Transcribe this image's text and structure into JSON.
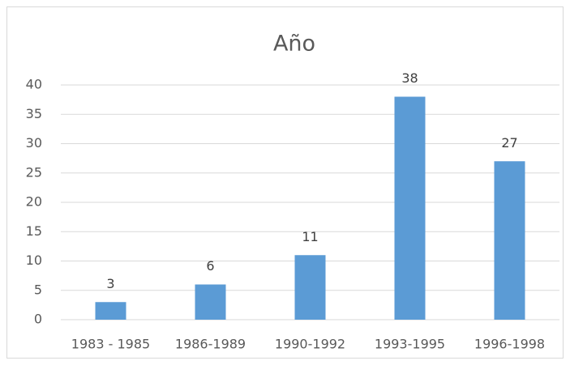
{
  "chart_data": {
    "type": "bar",
    "title": "Año",
    "categories": [
      "1983 - 1985",
      "1986-1989",
      "1990-1992",
      "1993-1995",
      "1996-1998"
    ],
    "values": [
      3,
      6,
      11,
      38,
      27
    ],
    "color": "#5b9bd5",
    "ylim": [
      0,
      40
    ],
    "yticks": [
      0,
      5,
      10,
      15,
      20,
      25,
      30,
      35,
      40
    ],
    "grid": true,
    "data_labels": true
  }
}
